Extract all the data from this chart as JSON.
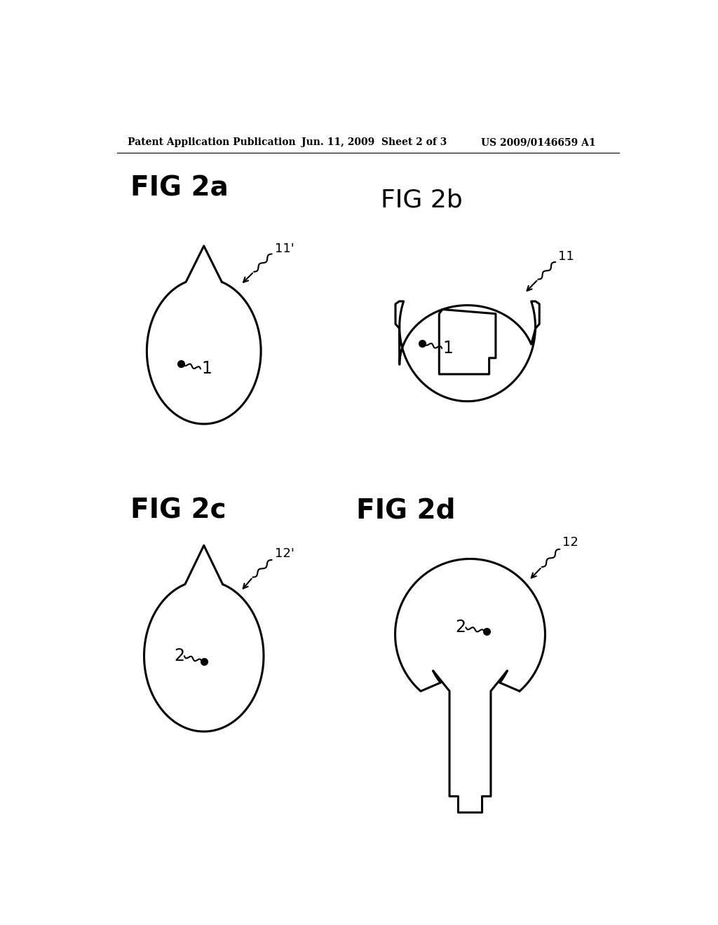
{
  "bg_color": "#ffffff",
  "header_left": "Patent Application Publication",
  "header_mid": "Jun. 11, 2009  Sheet 2 of 3",
  "header_right": "US 2009/0146659 A1",
  "fig2a_label": "FIG 2a",
  "fig2b_label": "FIG 2b",
  "fig2c_label": "FIG 2c",
  "fig2d_label": "FIG 2d",
  "ref11prime": "11'",
  "ref11": "11",
  "ref12prime": "12'",
  "ref12": "12",
  "dot_label_1": "1",
  "dot_label_2": "2"
}
